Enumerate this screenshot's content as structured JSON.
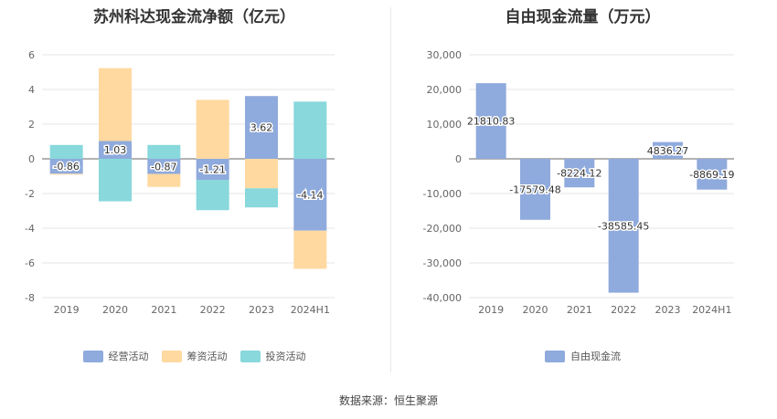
{
  "chart_data": [
    {
      "type": "bar",
      "stacked": true,
      "title": "苏州科达现金流净额（亿元）",
      "categories": [
        "2019",
        "2020",
        "2021",
        "2022",
        "2023",
        "2024H1"
      ],
      "ylim": [
        -8,
        6
      ],
      "yticks": [
        "-8",
        "-6",
        "-4",
        "-2",
        "0",
        "2",
        "4",
        "6"
      ],
      "grid": true,
      "legend_position": "bottom",
      "series": [
        {
          "name": "经营活动",
          "color": "#8faadc",
          "values": [
            -0.86,
            1.03,
            -0.87,
            -1.21,
            3.62,
            -4.14
          ]
        },
        {
          "name": "筹资活动",
          "color": "#ffd9a0",
          "values": [
            -0.05,
            4.2,
            -0.75,
            3.4,
            -1.7,
            -2.2
          ]
        },
        {
          "name": "投资活动",
          "color": "#88d8dc",
          "values": [
            0.8,
            -2.45,
            0.8,
            -1.75,
            -1.1,
            3.3
          ]
        }
      ],
      "data_labels": [
        "-0.86",
        "1.03",
        "-0.87",
        "-1.21",
        "3.62",
        "-4.14"
      ]
    },
    {
      "type": "bar",
      "title": "自由现金流量（万元）",
      "categories": [
        "2019",
        "2020",
        "2021",
        "2022",
        "2023",
        "2024H1"
      ],
      "ylim": [
        -40000,
        30000
      ],
      "yticks": [
        "-40,000",
        "-30,000",
        "-20,000",
        "-10,000",
        "0",
        "10,000",
        "20,000",
        "30,000"
      ],
      "grid": true,
      "legend_position": "bottom",
      "series": [
        {
          "name": "自由现金流",
          "color": "#8faadc",
          "values": [
            21810.83,
            -17579.48,
            -8224.12,
            -38585.45,
            4836.27,
            -8869.19
          ]
        }
      ],
      "data_labels": [
        "21810.83",
        "-17579.48",
        "-8224.12",
        "-38585.45",
        "4836.27",
        "-8869.19"
      ]
    }
  ],
  "footer": {
    "source": "数据来源：恒生聚源"
  }
}
